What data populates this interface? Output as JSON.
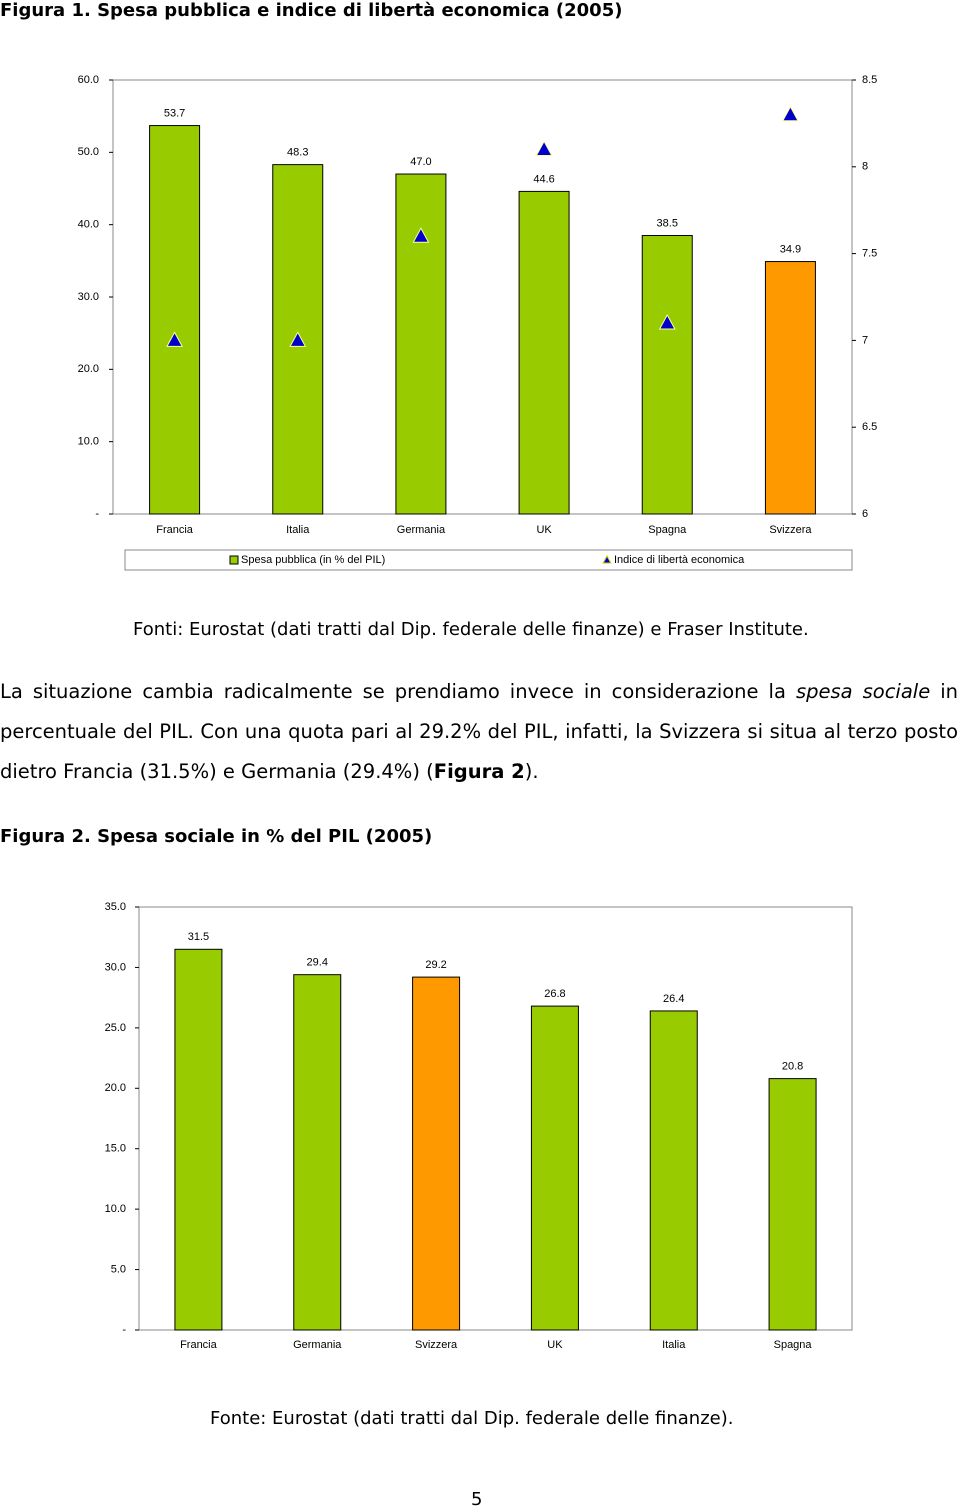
{
  "figure1_title": "Figura 1. Spesa pubblica e indice di libertà economica (2005)",
  "source1": "Fonti: Eurostat (dati tratti dal Dip. federale delle finanze) e Fraser Institute.",
  "paragraph": [
    "La situazione cambia radicalmente se prendiamo invece in considerazione la ",
    "spesa sociale",
    " in percentuale del PIL. Con una quota pari al 29.2% del PIL, infatti, la Svizzera si situa al terzo posto dietro Francia (31.5%) e Germania (29.4%) (",
    "Figura 2",
    ")."
  ],
  "figure2_title": "Figura 2. Spesa sociale in % del PIL (2005)",
  "source2": "Fonte: Eurostat (dati tratti dal Dip. federale delle finanze).",
  "page_number": "5",
  "chart_data": [
    {
      "type": "bar",
      "categories": [
        "Francia",
        "Italia",
        "Germania",
        "UK",
        "Spagna",
        "Svizzera"
      ],
      "series": [
        {
          "name": "Spesa pubblica (in % del PIL)",
          "color": "#99cc00",
          "colors": [
            "#99cc00",
            "#99cc00",
            "#99cc00",
            "#99cc00",
            "#99cc00",
            "#ff9900"
          ],
          "values": [
            53.7,
            48.3,
            47.0,
            44.6,
            38.5,
            34.9
          ],
          "value_labels": [
            "53.7",
            "48.3",
            "47.0",
            "44.6",
            "38.5",
            "34.9"
          ]
        },
        {
          "name": "Indice di libertà economica",
          "type": "scatter",
          "marker": "triangle",
          "color": "#0000cc",
          "axis": "y2",
          "values": [
            7.0,
            7.0,
            7.6,
            8.1,
            7.1,
            8.3
          ]
        }
      ],
      "ylim": [
        0,
        60
      ],
      "yticks": [
        {
          "value": 0,
          "label": "-"
        },
        {
          "value": 10,
          "label": "10.0"
        },
        {
          "value": 20,
          "label": "20.0"
        },
        {
          "value": 30,
          "label": "30.0"
        },
        {
          "value": 40,
          "label": "40.0"
        },
        {
          "value": 50,
          "label": "50.0"
        },
        {
          "value": 60,
          "label": "60.0"
        }
      ],
      "y2lim": [
        6,
        8.5
      ],
      "y2ticks": [
        6,
        6.5,
        7,
        7.5,
        8,
        8.5
      ],
      "legend": "bottom"
    },
    {
      "type": "bar",
      "categories": [
        "Francia",
        "Germania",
        "Svizzera",
        "UK",
        "Italia",
        "Spagna"
      ],
      "values": [
        31.5,
        29.4,
        29.2,
        26.8,
        26.4,
        20.8
      ],
      "value_labels": [
        "31.5",
        "29.4",
        "29.2",
        "26.8",
        "26.4",
        "20.8"
      ],
      "color": "#99cc00",
      "colors": [
        "#99cc00",
        "#99cc00",
        "#ff9900",
        "#99cc00",
        "#99cc00",
        "#99cc00"
      ],
      "ylim": [
        0,
        35
      ],
      "yticks": [
        {
          "value": 0,
          "label": "-"
        },
        {
          "value": 5,
          "label": "5.0"
        },
        {
          "value": 10,
          "label": "10.0"
        },
        {
          "value": 15,
          "label": "15.0"
        },
        {
          "value": 20,
          "label": "20.0"
        },
        {
          "value": 25,
          "label": "25.0"
        },
        {
          "value": 30,
          "label": "30.0"
        },
        {
          "value": 35,
          "label": "35.0"
        }
      ]
    }
  ]
}
